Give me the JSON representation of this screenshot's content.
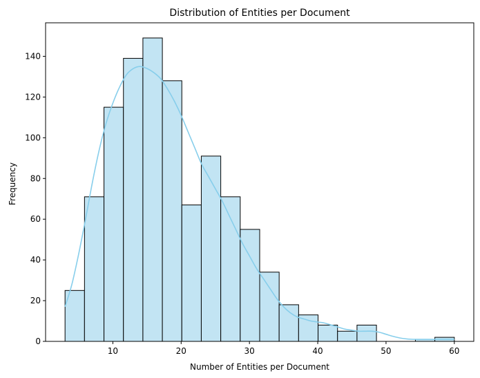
{
  "chart_data": {
    "type": "bar",
    "title": "Distribution of Entities per Document",
    "xlabel": "Number of Entities per Document",
    "ylabel": "Frequency",
    "xlim": [
      0.15,
      62.85
    ],
    "ylim": [
      0,
      156.45
    ],
    "xticks": [
      10,
      20,
      30,
      40,
      50,
      60
    ],
    "yticks": [
      0,
      20,
      40,
      60,
      80,
      100,
      120,
      140
    ],
    "bin_edges": [
      3,
      5.85,
      8.7,
      11.55,
      14.4,
      17.25,
      20.1,
      22.95,
      25.8,
      28.65,
      31.5,
      34.35,
      37.2,
      40.05,
      42.9,
      45.75,
      48.6,
      51.45,
      54.3,
      57.15,
      60
    ],
    "counts": [
      25,
      71,
      115,
      139,
      149,
      128,
      67,
      91,
      71,
      55,
      34,
      18,
      13,
      8,
      5,
      8,
      0,
      0,
      1,
      2
    ],
    "bar_fill": "#c2e4f3",
    "bar_edge": "#000000",
    "kde": {
      "color": "#87ceeb",
      "x": [
        3,
        4,
        5,
        6,
        7,
        8,
        9,
        10,
        11,
        12,
        13,
        14,
        15,
        16,
        17,
        18,
        19,
        20,
        21,
        22,
        23,
        24,
        25,
        26,
        27,
        28,
        29,
        30,
        31,
        32,
        33,
        34,
        35,
        36,
        37,
        38,
        39,
        40,
        41,
        42,
        43,
        44,
        45,
        46,
        47,
        48,
        49,
        50,
        51,
        52,
        53,
        54,
        55,
        56,
        57,
        58,
        59,
        60
      ],
      "y": [
        17,
        28,
        43,
        60,
        78,
        94,
        107,
        117,
        125,
        131,
        134,
        135,
        134,
        132,
        129,
        124,
        118,
        111,
        103,
        95,
        87,
        81,
        75,
        69,
        62,
        55,
        48,
        42,
        36,
        31,
        26,
        21,
        17,
        14,
        12,
        11,
        10,
        9.5,
        9,
        8,
        7,
        6,
        5.5,
        5,
        5,
        5,
        4.5,
        3.5,
        2.5,
        1.7,
        1.2,
        1,
        1,
        1,
        1,
        1,
        1,
        1
      ]
    }
  }
}
